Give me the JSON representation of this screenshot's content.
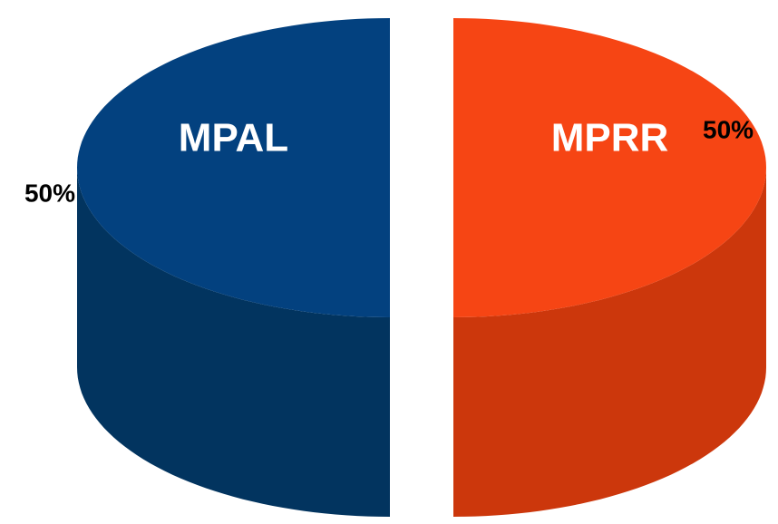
{
  "chart_data": {
    "type": "pie",
    "categories": [
      "MPRR",
      "MPAL"
    ],
    "values": [
      50,
      50
    ],
    "value_labels": [
      "50%",
      "50%"
    ],
    "colors": [
      "#f64514",
      "#03417f"
    ],
    "side_colors": [
      "#cc370c",
      "#02345f"
    ]
  }
}
